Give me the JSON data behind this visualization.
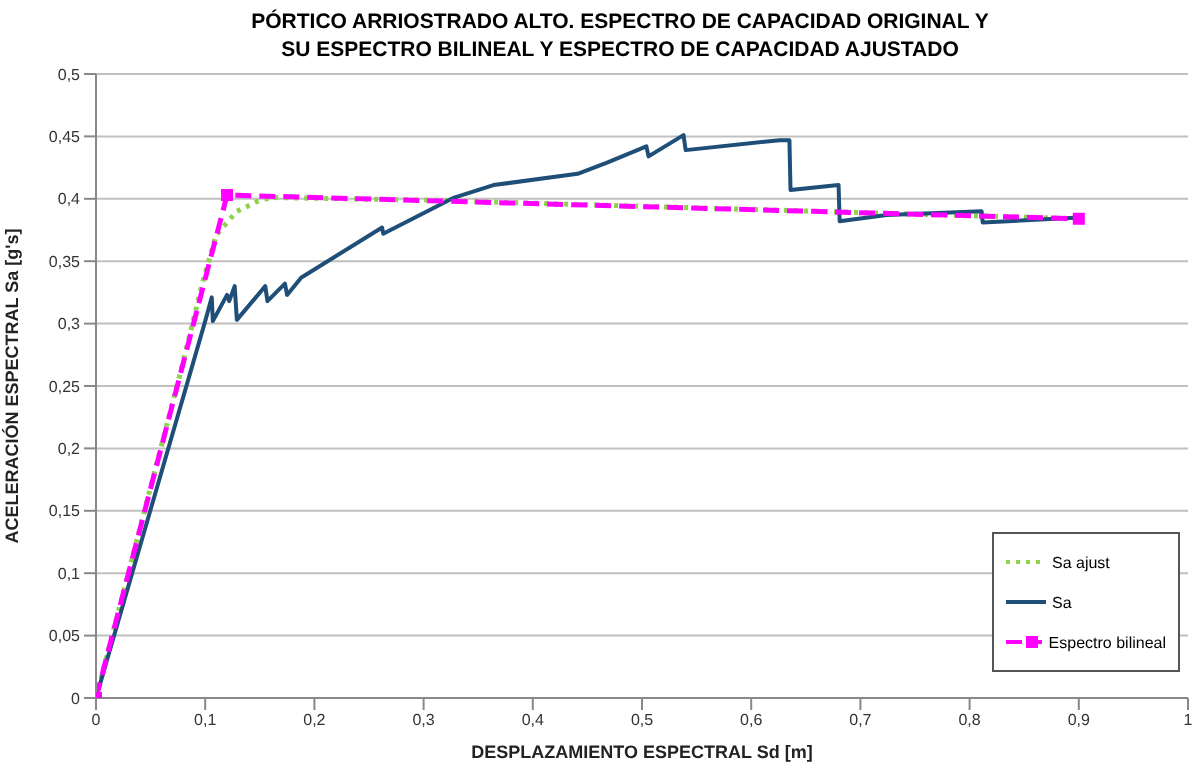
{
  "chart_data": {
    "type": "line",
    "title": "PÓRTICO ARRIOSTRADO ALTO. ESPECTRO DE CAPACIDAD ORIGINAL Y SU ESPECTRO BILINEAL Y ESPECTRO DE CAPACIDAD AJUSTADO",
    "xlabel": "DESPLAZAMIENTO ESPECTRAL Sd [m]",
    "ylabel": "ACELERACIÓN ESPECTRAL Sa [g's]",
    "xlim": [
      0,
      1
    ],
    "xticks": [
      {
        "value": 0,
        "label": "0"
      },
      {
        "value": 0.1,
        "label": "0,1"
      },
      {
        "value": 0.2,
        "label": "0,2"
      },
      {
        "value": 0.3,
        "label": "0,3"
      },
      {
        "value": 0.4,
        "label": "0,4"
      },
      {
        "value": 0.5,
        "label": "0,5"
      },
      {
        "value": 0.6,
        "label": "0,6"
      },
      {
        "value": 0.7,
        "label": "0,7"
      },
      {
        "value": 0.8,
        "label": "0,8"
      },
      {
        "value": 0.9,
        "label": "0,9"
      },
      {
        "value": 1,
        "label": "1"
      }
    ],
    "ylim": [
      0,
      0.5
    ],
    "yticks": [
      {
        "value": 0,
        "label": "0"
      },
      {
        "value": 0.05,
        "label": "0,05"
      },
      {
        "value": 0.1,
        "label": "0,1"
      },
      {
        "value": 0.15,
        "label": "0,15"
      },
      {
        "value": 0.2,
        "label": "0,2"
      },
      {
        "value": 0.25,
        "label": "0,25"
      },
      {
        "value": 0.3,
        "label": "0,3"
      },
      {
        "value": 0.35,
        "label": "0,35"
      },
      {
        "value": 0.4,
        "label": "0,4"
      },
      {
        "value": 0.45,
        "label": "0,45"
      },
      {
        "value": 0.5,
        "label": "0,5"
      }
    ],
    "grid": "y",
    "legend": "bottom right",
    "series": [
      {
        "name": "Sa ajust",
        "color": "#92d050",
        "line_style": "dotted",
        "marker": "none",
        "x": [
          0,
          0.08,
          0.097,
          0.11,
          0.129,
          0.148,
          0.16,
          0.3,
          0.9
        ],
        "values": [
          0,
          0.27,
          0.331,
          0.371,
          0.39,
          0.398,
          0.401,
          0.399,
          0.384
        ]
      },
      {
        "name": "Sa",
        "color": "#1f4e79",
        "line_style": "solid",
        "marker": "none",
        "x": [
          0,
          0.1,
          0.106,
          0.107,
          0.12,
          0.122,
          0.127,
          0.129,
          0.155,
          0.157,
          0.173,
          0.175,
          0.188,
          0.19,
          0.262,
          0.263,
          0.328,
          0.364,
          0.441,
          0.468,
          0.504,
          0.506,
          0.538,
          0.54,
          0.626,
          0.635,
          0.636,
          0.68,
          0.681,
          0.724,
          0.811,
          0.812,
          0.901
        ],
        "values": [
          0,
          0.302,
          0.321,
          0.302,
          0.323,
          0.318,
          0.33,
          0.303,
          0.33,
          0.318,
          0.332,
          0.323,
          0.337,
          0.338,
          0.377,
          0.372,
          0.401,
          0.411,
          0.42,
          0.429,
          0.442,
          0.434,
          0.451,
          0.439,
          0.447,
          0.447,
          0.407,
          0.411,
          0.382,
          0.387,
          0.39,
          0.381,
          0.385
        ]
      },
      {
        "name": "Espectro bilineal",
        "color": "#ff00ff",
        "line_style": "dashed",
        "marker": "square",
        "x": [
          0,
          0.12,
          0.9
        ],
        "values": [
          0,
          0.403,
          0.384
        ]
      }
    ]
  }
}
